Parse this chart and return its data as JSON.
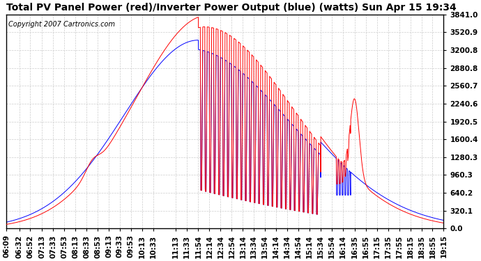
{
  "title": "Total PV Panel Power (red)/Inverter Power Output (blue) (watts) Sun Apr 15 19:34",
  "copyright": "Copyright 2007 Cartronics.com",
  "yticks": [
    0.0,
    320.1,
    640.2,
    960.3,
    1280.3,
    1600.4,
    1920.5,
    2240.6,
    2560.7,
    2880.8,
    3200.8,
    3520.9,
    3841.0
  ],
  "ymax": 3841.0,
  "ymin": 0.0,
  "bg_color": "#ffffff",
  "grid_color": "#cccccc",
  "red_color": "#ff0000",
  "blue_color": "#0000ff",
  "title_fontsize": 10,
  "tick_fontsize": 7.5,
  "xtick_labels": [
    "06:09",
    "06:32",
    "06:52",
    "07:13",
    "07:33",
    "07:53",
    "08:13",
    "08:33",
    "08:53",
    "09:13",
    "09:33",
    "09:53",
    "10:13",
    "10:33",
    "11:13",
    "11:33",
    "11:54",
    "12:14",
    "12:34",
    "12:54",
    "13:14",
    "13:34",
    "13:54",
    "14:14",
    "14:34",
    "14:54",
    "15:14",
    "15:34",
    "15:54",
    "16:14",
    "16:35",
    "16:55",
    "17:15",
    "17:35",
    "17:55",
    "18:15",
    "18:35",
    "18:55",
    "19:15"
  ]
}
